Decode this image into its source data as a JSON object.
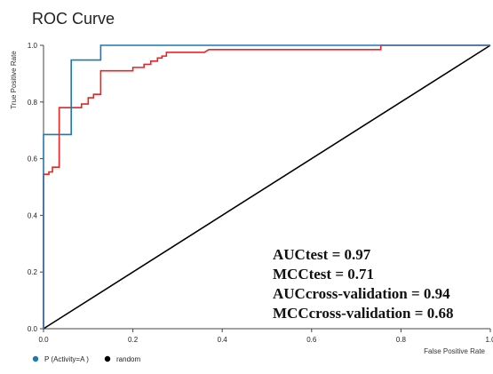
{
  "chart_data": {
    "type": "line",
    "title": "ROC Curve",
    "xlabel": "False Positive Rate",
    "ylabel": "True Positive Rate",
    "xlim": [
      0,
      1
    ],
    "ylim": [
      0,
      1
    ],
    "x_ticks": [
      "0.0",
      "0.2",
      "0.4",
      "0.6",
      "0.8",
      "1.0"
    ],
    "y_ticks": [
      "0.0",
      "0.2",
      "0.4",
      "0.6",
      "0.8",
      "1.0"
    ],
    "grid": false,
    "legend_position": "bottom-left",
    "legend": [
      {
        "label": "P (Activity=A )",
        "color": "#1f77b4"
      },
      {
        "label": "random",
        "color": "#000000"
      }
    ],
    "annotations": [
      "AUCtest = 0.97",
      "MCCtest = 0.71",
      "AUCcross-validation = 0.94",
      "MCCcross-validation = 0.68"
    ],
    "series": [
      {
        "name": "P (Activity=A )",
        "color": "#1f77b4",
        "points": [
          [
            0,
            0
          ],
          [
            0,
            0.545
          ],
          [
            0,
            0.685
          ],
          [
            0.062,
            0.685
          ],
          [
            0.062,
            0.948
          ],
          [
            0.128,
            0.948
          ],
          [
            0.128,
            1.0
          ],
          [
            0.76,
            1.0
          ],
          [
            1.0,
            1.0
          ]
        ]
      },
      {
        "name": "",
        "color": "#ee2222",
        "points": [
          [
            0,
            0
          ],
          [
            0,
            0.545
          ],
          [
            0.012,
            0.545
          ],
          [
            0.012,
            0.553
          ],
          [
            0.02,
            0.553
          ],
          [
            0.02,
            0.57
          ],
          [
            0.035,
            0.57
          ],
          [
            0.035,
            0.78
          ],
          [
            0.085,
            0.78
          ],
          [
            0.085,
            0.793
          ],
          [
            0.1,
            0.793
          ],
          [
            0.1,
            0.815
          ],
          [
            0.112,
            0.815
          ],
          [
            0.112,
            0.827
          ],
          [
            0.128,
            0.827
          ],
          [
            0.128,
            0.91
          ],
          [
            0.2,
            0.91
          ],
          [
            0.2,
            0.922
          ],
          [
            0.225,
            0.922
          ],
          [
            0.225,
            0.933
          ],
          [
            0.24,
            0.933
          ],
          [
            0.24,
            0.944
          ],
          [
            0.255,
            0.944
          ],
          [
            0.255,
            0.955
          ],
          [
            0.265,
            0.955
          ],
          [
            0.265,
            0.962
          ],
          [
            0.275,
            0.962
          ],
          [
            0.275,
            0.975
          ],
          [
            0.36,
            0.975
          ],
          [
            0.37,
            0.985
          ],
          [
            0.755,
            0.985
          ],
          [
            0.755,
            1.0
          ],
          [
            1.0,
            1.0
          ]
        ]
      },
      {
        "name": "random",
        "color": "#000000",
        "points": [
          [
            0,
            0
          ],
          [
            1,
            1
          ]
        ]
      }
    ]
  }
}
